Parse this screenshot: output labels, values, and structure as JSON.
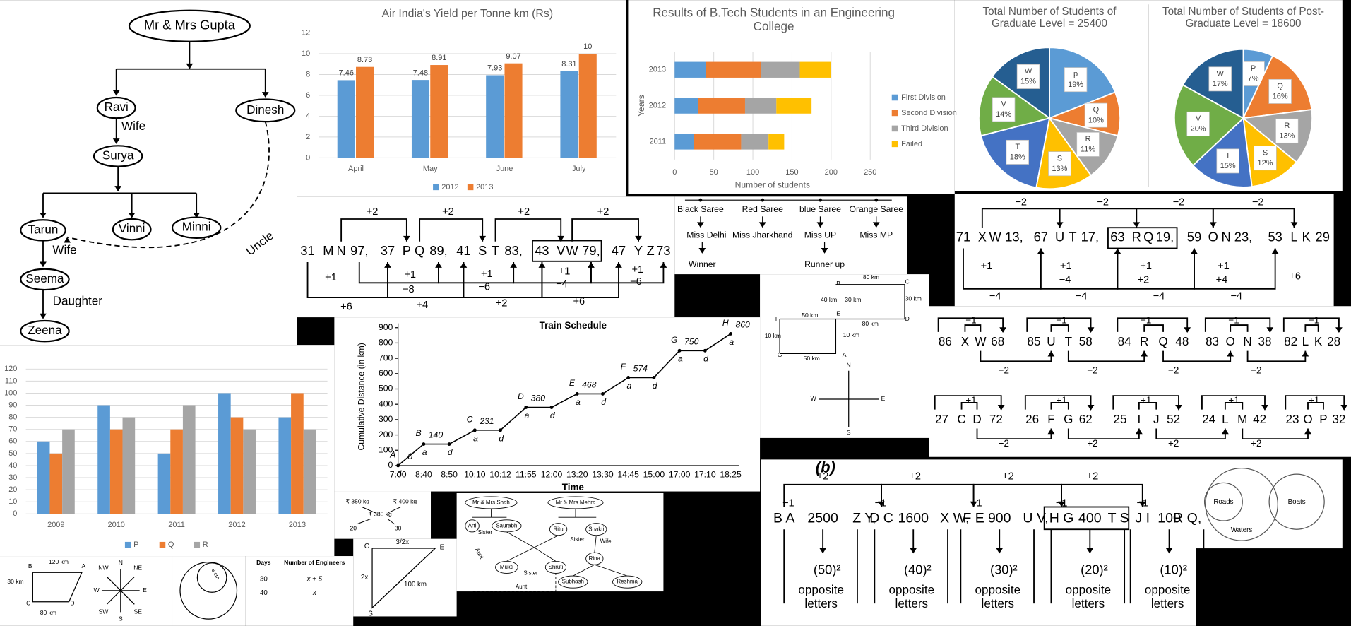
{
  "chart_data": [
    {
      "type": "bar",
      "title": "Air India's Yield per Tonne km (Rs)",
      "categories": [
        "April",
        "May",
        "June",
        "July"
      ],
      "series": [
        {
          "name": "2012",
          "color": "#5b9bd5",
          "values": [
            7.46,
            7.48,
            7.93,
            8.31
          ]
        },
        {
          "name": "2013",
          "color": "#ed7d31",
          "values": [
            8.73,
            8.91,
            9.07,
            10
          ]
        }
      ],
      "ylim": [
        0,
        12
      ],
      "yticks": [
        0,
        2,
        4,
        6,
        8,
        10,
        12
      ],
      "grid": true,
      "data_labels": true,
      "legend": "bottom"
    },
    {
      "type": "hbar",
      "stacked": true,
      "title": "Results of B.Tech Students in an Engineering College",
      "x_label": "Number of students",
      "y_label": "Years",
      "categories": [
        "2011",
        "2012",
        "2013"
      ],
      "series": [
        {
          "name": "First Division",
          "color": "#5b9bd5",
          "values": [
            25,
            30,
            40
          ]
        },
        {
          "name": "Second Division",
          "color": "#ed7d31",
          "values": [
            60,
            60,
            70
          ]
        },
        {
          "name": "Third Division",
          "color": "#a5a5a5",
          "values": [
            35,
            40,
            50
          ]
        },
        {
          "name": "Failed",
          "color": "#ffc000",
          "values": [
            20,
            45,
            40
          ]
        }
      ],
      "xlim": [
        0,
        250
      ],
      "xticks": [
        0,
        50,
        100,
        150,
        200,
        250
      ],
      "grid": true,
      "legend": "right"
    },
    {
      "type": "pie",
      "title": "Total Number of Students of Graduate Level = 25400",
      "categories": [
        "p",
        "Q",
        "R",
        "S",
        "T",
        "V",
        "W"
      ],
      "values": [
        19,
        10,
        11,
        13,
        18,
        14,
        15
      ],
      "value_labels": [
        "19%",
        "10%",
        "11%",
        "13%",
        "18%",
        "14%",
        "15%"
      ],
      "colors": [
        "#5b9bd5",
        "#ed7d31",
        "#a5a5a5",
        "#ffc000",
        "#4472c4",
        "#70ad47",
        "#255e91"
      ]
    },
    {
      "type": "pie",
      "title": "Total Number of Students of Post-Graduate Level = 18600",
      "categories": [
        "P",
        "Q",
        "R",
        "S",
        "T",
        "V",
        "W"
      ],
      "values": [
        7,
        16,
        13,
        12,
        15,
        20,
        17
      ],
      "value_labels": [
        "7%",
        "16%",
        "13%",
        "12%",
        "15%",
        "20%",
        "17%"
      ],
      "colors": [
        "#5b9bd5",
        "#ed7d31",
        "#a5a5a5",
        "#ffc000",
        "#4472c4",
        "#70ad47",
        "#255e91"
      ]
    },
    {
      "type": "bar",
      "categories": [
        "2009",
        "2010",
        "2011",
        "2012",
        "2013"
      ],
      "series": [
        {
          "name": "P",
          "color": "#5b9bd5",
          "values": [
            60,
            90,
            50,
            100,
            80
          ]
        },
        {
          "name": "Q",
          "color": "#ed7d31",
          "values": [
            50,
            70,
            70,
            80,
            100
          ]
        },
        {
          "name": "R",
          "color": "#a5a5a5",
          "values": [
            70,
            80,
            90,
            70,
            70
          ]
        }
      ],
      "ylim": [
        0,
        120
      ],
      "yticks": [
        0,
        10,
        20,
        30,
        40,
        50,
        60,
        70,
        80,
        90,
        100,
        110,
        120
      ],
      "grid": true,
      "legend": "bottom"
    },
    {
      "type": "line",
      "title": "Train Schedule",
      "x_label": "Time",
      "y_label": "Cumulative Distance (in km)",
      "categories": [
        "7:00",
        "8:40",
        "8:50",
        "10:10",
        "10:12",
        "11:55",
        "12:00",
        "13:20",
        "13:30",
        "14:45",
        "15:00",
        "17:00",
        "17:10",
        "18:25"
      ],
      "values": [
        0,
        140,
        140,
        231,
        231,
        380,
        380,
        468,
        468,
        574,
        574,
        750,
        750,
        860
      ],
      "point_labels": [
        "A",
        "B",
        null,
        "C",
        null,
        "D",
        null,
        "E",
        null,
        "F",
        null,
        "G",
        null,
        "H"
      ],
      "point_tags": [
        "d",
        "a",
        "d",
        "a",
        "d",
        "a",
        "d",
        "a",
        "d",
        "a",
        "d",
        "a",
        "d",
        "a"
      ],
      "ylim": [
        0,
        900
      ],
      "yticks": [
        0,
        100,
        200,
        300,
        400,
        500,
        600,
        700,
        800,
        900
      ],
      "color": "#000000",
      "grid": false
    }
  ],
  "family_tree": {
    "nodes": [
      "Mr & Mrs Gupta",
      "Ravi",
      "Dinesh",
      "Surya",
      "Tarun",
      "Vinni",
      "Minni",
      "Seema",
      "Zeena"
    ],
    "relations": [
      "Wife",
      "Wife",
      "Daughter",
      "Uncle"
    ]
  },
  "series_a": {
    "tokens": [
      "31",
      "M",
      "N",
      "97,",
      "37",
      "P",
      "Q",
      "89,",
      "41",
      "S",
      "T",
      "83,",
      "43",
      "V",
      "W",
      "79,",
      "47",
      "Y",
      "Z",
      "73"
    ],
    "labels": [
      "+2",
      "+2",
      "+2",
      "+2",
      "+1",
      "+1",
      "+1",
      "+1",
      "+1",
      "−8",
      "−6",
      "−4",
      "−6",
      "+6",
      "+4",
      "+2",
      "+6"
    ]
  },
  "saree": {
    "sarees": [
      "Black Saree",
      "Red Saree",
      "blue Saree",
      "Orange Saree"
    ],
    "winners": [
      "Miss Delhi",
      "Miss Jharkhand",
      "Miss UP",
      "Miss MP"
    ],
    "results": [
      "Winner",
      "Runner up"
    ]
  },
  "series_right": {
    "tokens": [
      "71",
      "X",
      "W",
      "13,",
      "67",
      "U",
      "T",
      "17,",
      "63",
      "R",
      "Q",
      "19,",
      "59",
      "O",
      "N",
      "23,",
      "53",
      "L",
      "K",
      "29"
    ],
    "labels": [
      "−2",
      "−2",
      "−2",
      "−2",
      "+1",
      "+1",
      "−4",
      "+1",
      "+2",
      "+1",
      "+4",
      "+6",
      "−4",
      "−4",
      "−4",
      "−4"
    ]
  },
  "directions": {
    "labels": [
      "B",
      "C",
      "D",
      "E",
      "F",
      "G",
      "A",
      "80 km",
      "40 km",
      "30 km",
      "30 km",
      "50 km",
      "10 km",
      "10 km",
      "80 km",
      "50 km",
      "N",
      "S",
      "E",
      "W"
    ]
  },
  "series_rows": [
    {
      "tokens": [
        "86",
        "X",
        "W",
        "68",
        "85",
        "U",
        "T",
        "58",
        "84",
        "R",
        "Q",
        "48",
        "83",
        "O",
        "N",
        "38",
        "82",
        "L",
        "K",
        "28"
      ],
      "labels": [
        "−1",
        "−1",
        "−1",
        "−1",
        "−1",
        "−2",
        "−2",
        "−2",
        "−2"
      ]
    },
    {
      "tokens": [
        "27",
        "C",
        "D",
        "72",
        "26",
        "F",
        "G",
        "62",
        "25",
        "I",
        "J",
        "52",
        "24",
        "L",
        "M",
        "42",
        "23",
        "O",
        "P",
        "32"
      ],
      "labels": [
        "+1",
        "+1",
        "+1",
        "+1",
        "+1",
        "+2",
        "+2",
        "+2",
        "+2"
      ]
    }
  ],
  "series_b": {
    "heading": "(b)",
    "tokens": [
      "B A",
      "2500",
      "Z Y,",
      "D C",
      "1600",
      "X W,",
      "F E",
      "900",
      "U V,",
      "H G",
      "400",
      "T S",
      "J I",
      "100",
      "R Q,"
    ],
    "labels": [
      "+2",
      "+2",
      "+2",
      "+2",
      "−1",
      "−1",
      "−1",
      "−1",
      "−1"
    ],
    "squares": [
      "(50)²",
      "(40)²",
      "(30)²",
      "(20)²",
      "(10)²"
    ],
    "notes": [
      "opposite letters",
      "opposite letters",
      "opposite letters",
      "opposite letters",
      "opposite letters"
    ]
  },
  "venn": {
    "labels": [
      "Roads",
      "Boats",
      "Waters"
    ]
  },
  "compass": {
    "labels": [
      "B",
      "A",
      "120 km",
      "30 km",
      "C",
      "D",
      "80 km",
      "N",
      "NE",
      "NW",
      "E",
      "W",
      "S",
      "SE",
      "SW"
    ]
  },
  "circle": {
    "label": "8 cm"
  },
  "work_table": {
    "header": [
      "Days",
      "Number of Engineers"
    ],
    "rows": [
      [
        "30",
        "x + 5"
      ],
      [
        "40",
        "x"
      ]
    ]
  },
  "mixture": {
    "labels": [
      "₹ 350 kg",
      "₹ 400 kg",
      "₹ 380 kg",
      "20",
      "30"
    ]
  },
  "triangle": {
    "labels": [
      "O",
      "E",
      "3/2x",
      "2x",
      "100 km",
      "S"
    ]
  },
  "family_tree_2": {
    "labels": [
      "Mr & Mrs Shah",
      "Mr & Mrs Mehra",
      "Arti",
      "Saurabh",
      "Ritu",
      "Shakti",
      "Sister",
      "Aunt",
      "Sister",
      "Wife",
      "Rina",
      "Mukti",
      "Sister",
      "Shruti",
      "Aunt",
      "Subhash",
      "Reshma"
    ]
  }
}
